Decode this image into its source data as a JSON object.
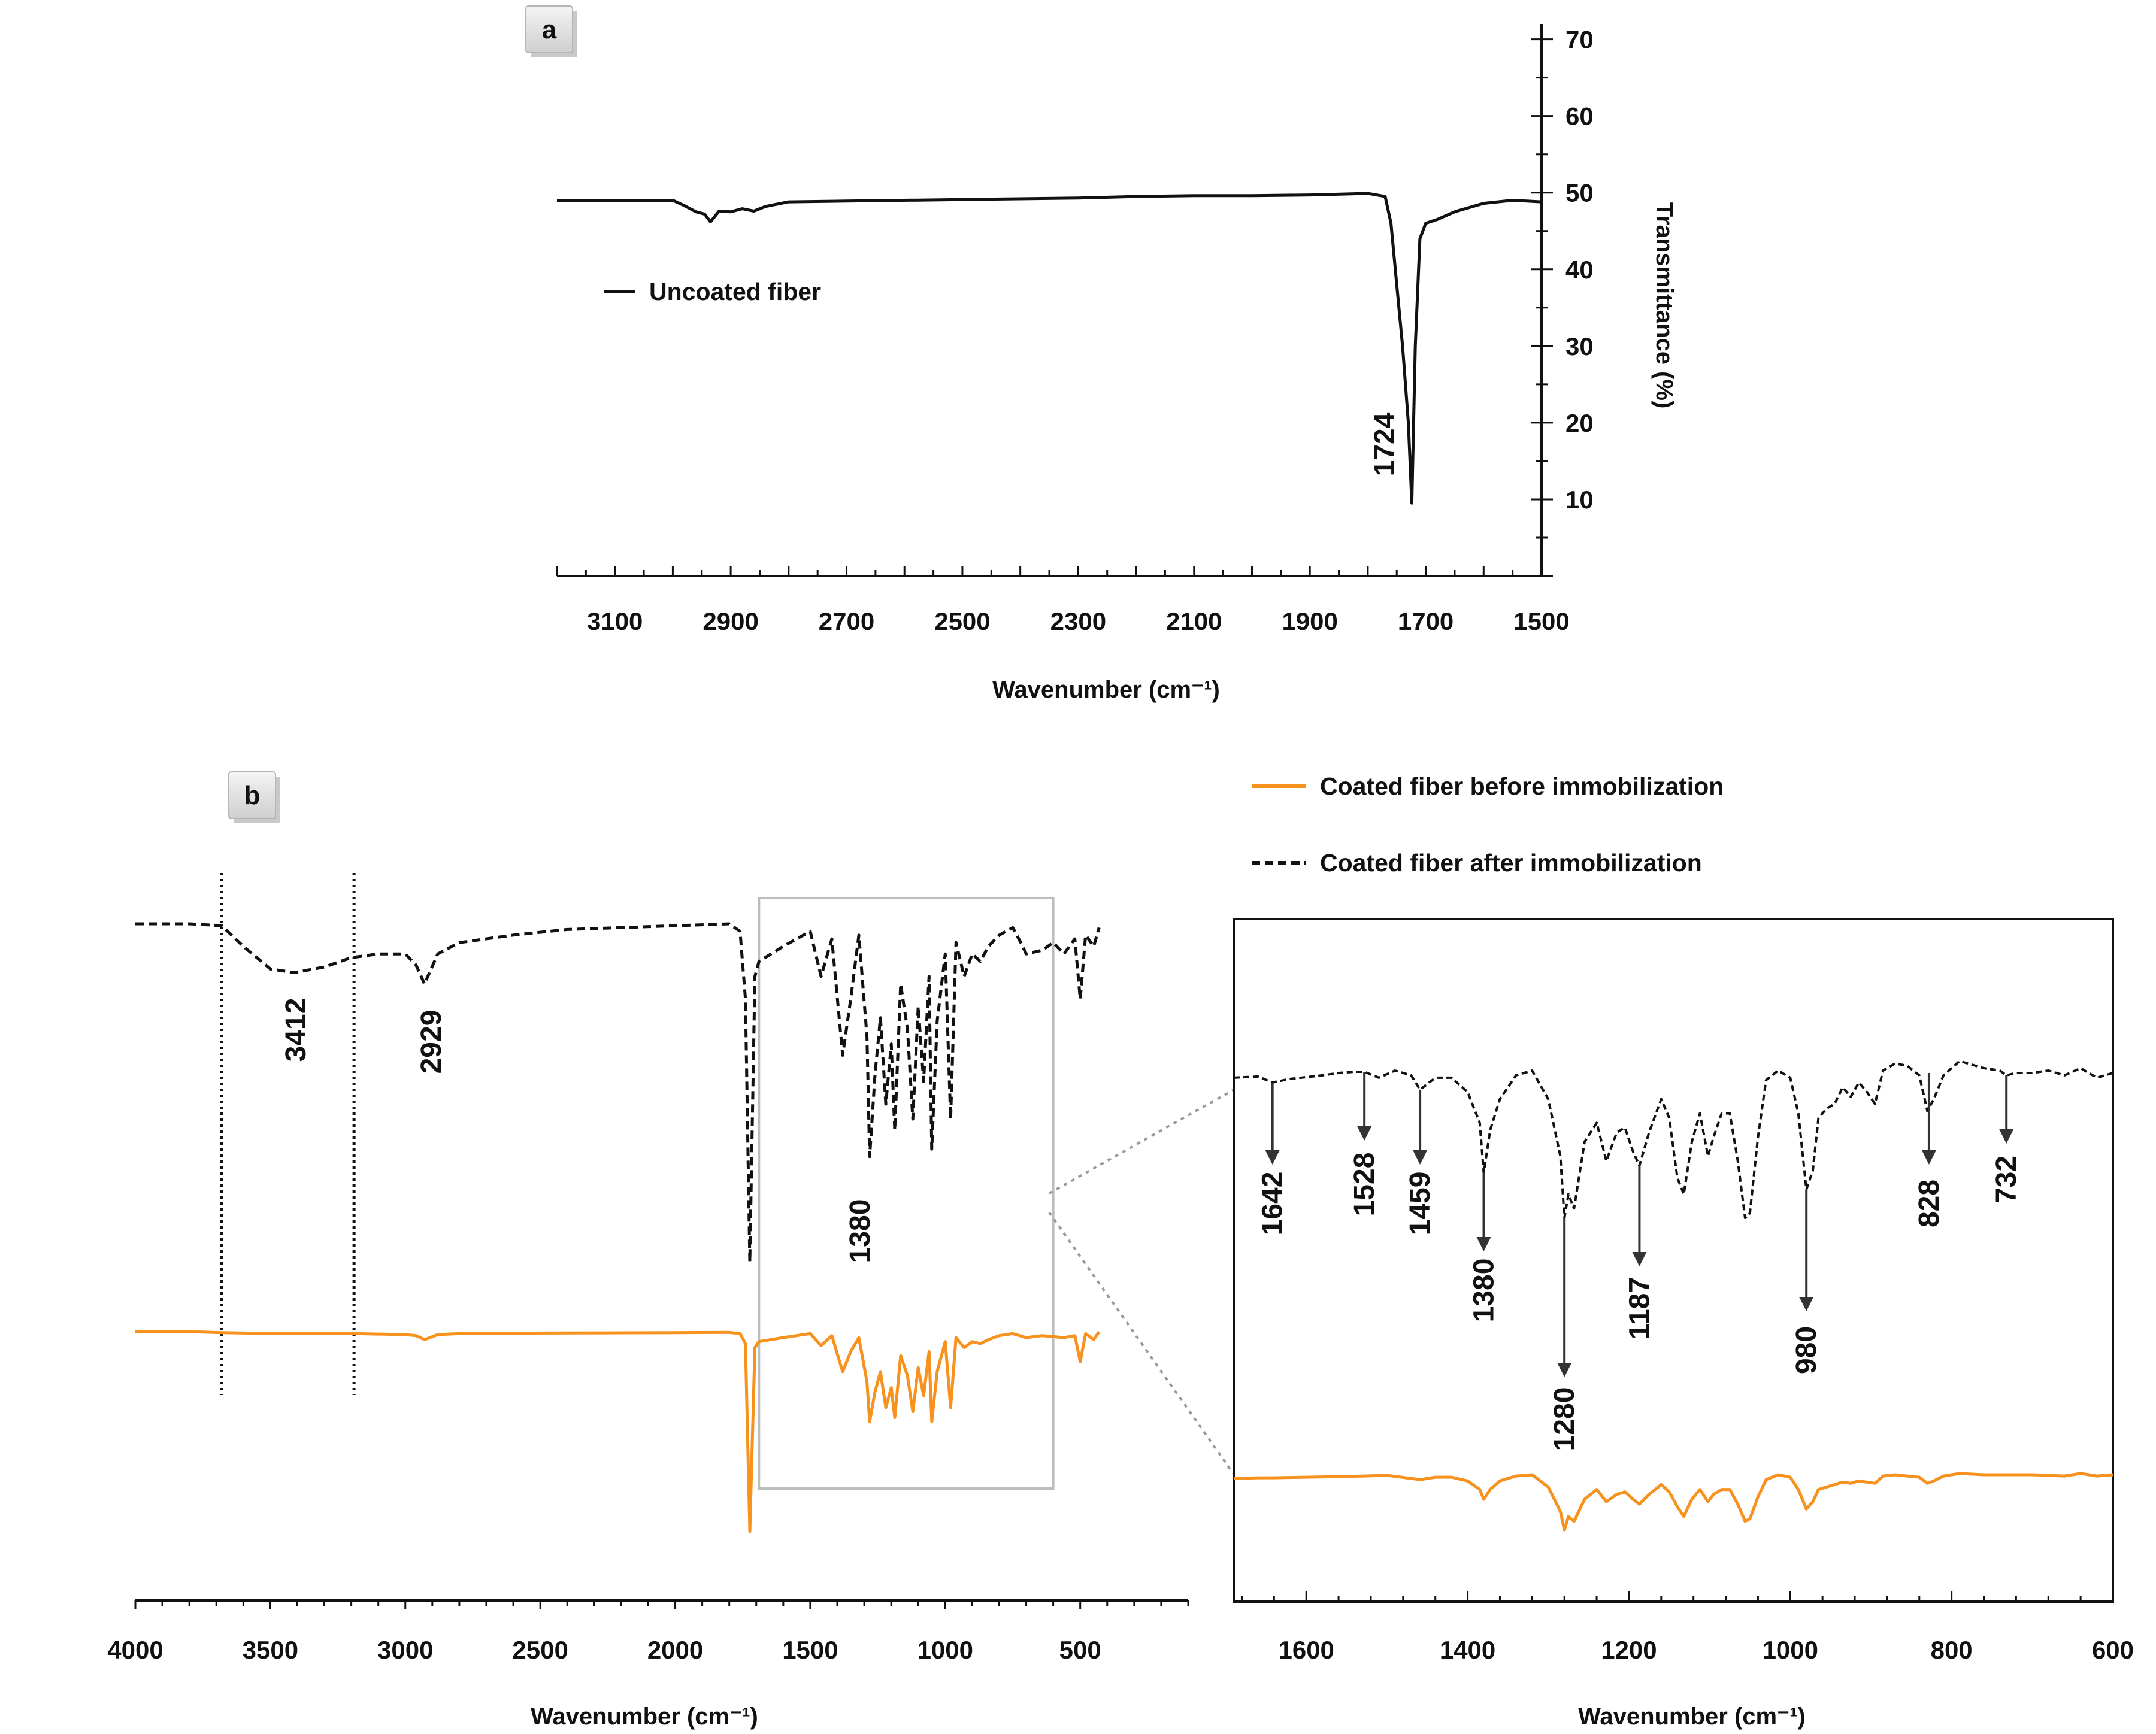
{
  "chart_data": [
    {
      "panel": "a",
      "type": "line",
      "xlabel": "Wavenumber (cm⁻¹)",
      "ylabel": "Transmittance (%)",
      "xlim": [
        3200,
        1500
      ],
      "ylim": [
        0,
        72
      ],
      "xticks": [
        3100,
        2900,
        2700,
        2500,
        2300,
        2100,
        1900,
        1700,
        1500
      ],
      "yticks": [
        10,
        20,
        30,
        40,
        50,
        60,
        70
      ],
      "series": [
        {
          "name": "Uncoated fiber",
          "color": "#111111",
          "dash": "solid",
          "x": [
            3200,
            3100,
            3000,
            2980,
            2960,
            2945,
            2935,
            2920,
            2900,
            2880,
            2860,
            2840,
            2800,
            2700,
            2500,
            2300,
            2200,
            2100,
            2000,
            1900,
            1800,
            1770,
            1760,
            1750,
            1740,
            1730,
            1724,
            1718,
            1710,
            1700,
            1680,
            1650,
            1600,
            1550,
            1500
          ],
          "y": [
            49,
            49,
            49,
            48.3,
            47.5,
            47.2,
            46.2,
            47.6,
            47.5,
            47.9,
            47.6,
            48.2,
            48.8,
            48.9,
            49.1,
            49.3,
            49.5,
            49.6,
            49.6,
            49.7,
            49.9,
            49.5,
            46,
            38,
            30,
            20,
            9.5,
            30,
            44,
            46,
            46.5,
            47.5,
            48.6,
            49,
            48.8
          ]
        }
      ],
      "annotations": [
        {
          "label": "1724",
          "x": 1724
        }
      ]
    },
    {
      "panel": "b",
      "type": "line",
      "xlabel": "Wavenumber (cm⁻¹)",
      "xlim": [
        4000,
        100
      ],
      "xticks": [
        4000,
        3500,
        3000,
        2500,
        2000,
        1500,
        1000,
        500
      ],
      "guide_lines_x": [
        3680,
        3190
      ],
      "zoom_box_x": [
        1690,
        600
      ],
      "series": [
        {
          "name": "Coated fiber after immobilization",
          "color": "#111111",
          "dash": "dashed",
          "x": [
            4000,
            3800,
            3680,
            3600,
            3500,
            3412,
            3300,
            3200,
            3100,
            3000,
            2960,
            2929,
            2880,
            2800,
            2600,
            2400,
            2200,
            2000,
            1800,
            1760,
            1740,
            1724,
            1705,
            1690,
            1600,
            1500,
            1460,
            1420,
            1380,
            1350,
            1320,
            1290,
            1280,
            1260,
            1240,
            1220,
            1200,
            1187,
            1165,
            1140,
            1120,
            1100,
            1080,
            1060,
            1050,
            1030,
            1000,
            980,
            960,
            930,
            900,
            870,
            840,
            800,
            750,
            720,
            700,
            640,
            600,
            560,
            520,
            500,
            480,
            450,
            430
          ],
          "y": [
            100,
            100,
            99.5,
            94,
            88,
            87,
            88.5,
            91,
            92,
            92,
            89,
            84,
            92,
            95,
            97,
            98.5,
            99,
            99.5,
            100,
            98,
            80,
            10,
            86,
            90,
            94,
            98,
            86,
            96,
            65,
            80,
            97,
            70,
            38,
            60,
            75,
            52,
            68,
            45,
            84,
            72,
            48,
            78,
            58,
            86,
            40,
            74,
            92,
            48,
            95,
            86,
            92,
            90,
            94,
            97,
            99,
            95,
            92,
            93,
            95,
            92,
            96,
            80,
            97,
            94,
            99
          ]
        },
        {
          "name": "Coated fiber before immobilization",
          "color": "#f7921e",
          "dash": "solid",
          "x": [
            4000,
            3800,
            3680,
            3500,
            3190,
            3000,
            2960,
            2929,
            2880,
            2800,
            2600,
            2400,
            2200,
            2000,
            1800,
            1760,
            1740,
            1724,
            1705,
            1690,
            1600,
            1500,
            1460,
            1420,
            1380,
            1350,
            1320,
            1290,
            1280,
            1260,
            1240,
            1220,
            1200,
            1187,
            1165,
            1140,
            1120,
            1100,
            1080,
            1060,
            1050,
            1030,
            1000,
            980,
            960,
            930,
            900,
            870,
            840,
            800,
            750,
            700,
            640,
            560,
            520,
            500,
            480,
            450,
            430
          ],
          "y": [
            100,
            100,
            99.5,
            99,
            99,
            98.5,
            98,
            96,
            98.5,
            99,
            99.2,
            99.3,
            99.4,
            99.5,
            99.6,
            99,
            94,
            0,
            92,
            95,
            97,
            99,
            93,
            98,
            80,
            90,
            97,
            75,
            55,
            70,
            80,
            62,
            72,
            57,
            88,
            78,
            60,
            82,
            68,
            90,
            55,
            80,
            95,
            62,
            97,
            92,
            95,
            94,
            96,
            98,
            99,
            97,
            98,
            97,
            98,
            85,
            99,
            96,
            100
          ]
        }
      ],
      "annotations": [
        {
          "label": "3412",
          "x": 3412
        },
        {
          "label": "2929",
          "x": 2929
        },
        {
          "label": "1380",
          "x": 1380
        }
      ]
    },
    {
      "panel": "b-zoom",
      "type": "line",
      "xlabel": "Wavenumber (cm⁻¹)",
      "xlim": [
        1690,
        600
      ],
      "xticks": [
        1600,
        1400,
        1200,
        1000,
        800,
        600
      ],
      "series": [
        {
          "name": "Coated fiber after immobilization",
          "color": "#111111",
          "dash": "dashed",
          "x": [
            1690,
            1660,
            1642,
            1620,
            1580,
            1560,
            1540,
            1528,
            1510,
            1490,
            1470,
            1459,
            1440,
            1420,
            1400,
            1385,
            1380,
            1372,
            1360,
            1340,
            1320,
            1300,
            1285,
            1280,
            1275,
            1268,
            1255,
            1240,
            1228,
            1215,
            1205,
            1195,
            1187,
            1175,
            1160,
            1150,
            1140,
            1132,
            1122,
            1112,
            1102,
            1095,
            1085,
            1075,
            1065,
            1056,
            1050,
            1040,
            1030,
            1015,
            1000,
            990,
            980,
            972,
            965,
            955,
            945,
            935,
            925,
            915,
            905,
            895,
            885,
            870,
            855,
            840,
            830,
            822,
            810,
            790,
            760,
            740,
            732,
            720,
            700,
            680,
            660,
            640,
            620,
            600
          ],
          "y": [
            97,
            97.5,
            95,
            96.5,
            98,
            99,
            99.5,
            99.5,
            97,
            100,
            98,
            92,
            97,
            97,
            91,
            78,
            57,
            75,
            88,
            98,
            100,
            88,
            64,
            38,
            48,
            42,
            70,
            78,
            62,
            74,
            76,
            66,
            60,
            74,
            88,
            80,
            55,
            48,
            70,
            82,
            64,
            72,
            82,
            82,
            62,
            38,
            40,
            72,
            96,
            100,
            97,
            82,
            50,
            58,
            80,
            84,
            86,
            93,
            89,
            95,
            91,
            86,
            100,
            103,
            102,
            98,
            83,
            88,
            98,
            104,
            101,
            100,
            98,
            99,
            99,
            100,
            98,
            101,
            97,
            99
          ]
        },
        {
          "name": "Coated fiber before immobilization",
          "color": "#f7921e",
          "dash": "solid",
          "x": [
            1690,
            1660,
            1642,
            1600,
            1560,
            1528,
            1500,
            1470,
            1459,
            1440,
            1420,
            1400,
            1385,
            1380,
            1372,
            1360,
            1340,
            1320,
            1300,
            1285,
            1280,
            1275,
            1268,
            1255,
            1240,
            1228,
            1215,
            1205,
            1195,
            1187,
            1175,
            1160,
            1150,
            1140,
            1132,
            1122,
            1112,
            1102,
            1095,
            1085,
            1075,
            1065,
            1056,
            1050,
            1040,
            1030,
            1015,
            1000,
            990,
            980,
            972,
            965,
            955,
            945,
            935,
            925,
            915,
            905,
            895,
            885,
            870,
            855,
            840,
            830,
            822,
            810,
            790,
            760,
            740,
            700,
            660,
            640,
            620,
            600
          ],
          "y": [
            97,
            97.5,
            97.5,
            98,
            98.5,
            99,
            99.5,
            97,
            96,
            98,
            98,
            95,
            88,
            80,
            88,
            95,
            99,
            100,
            90,
            70,
            55,
            66,
            62,
            80,
            88,
            78,
            84,
            86,
            80,
            76,
            84,
            92,
            86,
            74,
            66,
            80,
            88,
            78,
            84,
            88,
            88,
            76,
            62,
            64,
            82,
            96,
            100,
            98,
            88,
            72,
            78,
            88,
            90,
            92,
            94,
            93,
            95,
            94,
            93,
            99,
            100,
            99,
            98,
            93,
            95,
            99,
            101,
            100,
            100,
            100,
            99,
            101,
            99,
            100
          ]
        }
      ],
      "annotations": [
        {
          "label": "1642",
          "x": 1642
        },
        {
          "label": "1528",
          "x": 1528
        },
        {
          "label": "1459",
          "x": 1459
        },
        {
          "label": "1380",
          "x": 1380
        },
        {
          "label": "1280",
          "x": 1280
        },
        {
          "label": "1187",
          "x": 1187
        },
        {
          "label": "980",
          "x": 980
        },
        {
          "label": "828",
          "x": 828
        },
        {
          "label": "732",
          "x": 732
        }
      ]
    }
  ],
  "panel_tags": {
    "a": "a",
    "b": "b"
  },
  "legends": {
    "a": [
      "Uncoated fiber"
    ],
    "b": [
      "Coated fiber before immobilization",
      "Coated fiber after immobilization"
    ]
  }
}
